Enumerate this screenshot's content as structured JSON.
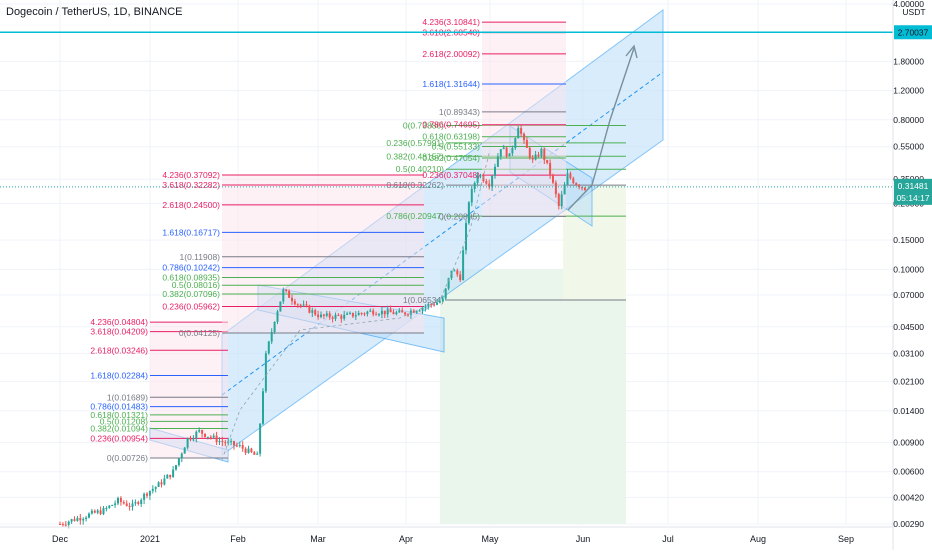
{
  "header": {
    "title": "Dogecoin / TetherUS, 1D, BINANCE"
  },
  "price_axis": {
    "unit": "USDT",
    "ticks": [
      "4.00000",
      "1.80000",
      "1.20000",
      "0.80000",
      "0.55000",
      "0.35000",
      "0.25000",
      "0.15000",
      "0.10000",
      "0.07000",
      "0.04500",
      "0.03100",
      "0.02100",
      "0.01400",
      "0.00900",
      "0.00600",
      "0.00420",
      "0.00290"
    ],
    "top_badge": "2.70037",
    "current_badge": "0.31481",
    "countdown": "05:14:17"
  },
  "colors": {
    "candle_up": "#26a69a",
    "candle_down": "#ef5350",
    "channel_fill": "#bbdefb",
    "channel_line": "#2196f3",
    "horizontal_line": "#00bcd4",
    "fib_red": "#e91e63",
    "fib_green": "#4caf50",
    "fib_blue": "#2962ff",
    "fib_gray": "#787b86",
    "target_zone": "#e8f5e9"
  },
  "chart_data": {
    "type": "candlestick",
    "symbol": "Dogecoin / TetherUS",
    "timeframe": "1D",
    "exchange": "BINANCE",
    "y_scale": "log",
    "ylim": [
      0.0029,
      4.0
    ],
    "x_tick_labels": [
      "Dec",
      "2021",
      "Feb",
      "Mar",
      "Apr",
      "May",
      "Jun",
      "Jul",
      "Aug",
      "Sep"
    ],
    "price_levels": {
      "horizontal_line": 2.70037,
      "current_price": 0.31481
    },
    "fib_sets": [
      {
        "anchor_low": 0.00726,
        "anchor_high": 0.01689,
        "labels": [
          {
            "text": "4.236(0.04804)",
            "value": 0.04804,
            "color": "red"
          },
          {
            "text": "3.618(0.04209)",
            "value": 0.04209,
            "color": "red"
          },
          {
            "text": "2.618(0.03246)",
            "value": 0.03246,
            "color": "red"
          },
          {
            "text": "1.618(0.02284)",
            "value": 0.02284,
            "color": "blue"
          },
          {
            "text": "1(0.01689)",
            "value": 0.01689,
            "color": "gray"
          },
          {
            "text": "0.786(0.01483)",
            "value": 0.01483,
            "color": "blue"
          },
          {
            "text": "0.618(0.01321)",
            "value": 0.01321,
            "color": "green"
          },
          {
            "text": "0.5(0.01208)",
            "value": 0.01208,
            "color": "green"
          },
          {
            "text": "0.382(0.01094)",
            "value": 0.01094,
            "color": "green"
          },
          {
            "text": "0.236(0.00954)",
            "value": 0.00954,
            "color": "red"
          },
          {
            "text": "0(0.00726)",
            "value": 0.00726,
            "color": "gray"
          }
        ]
      },
      {
        "anchor_low": 0.04125,
        "anchor_high": 0.11908,
        "labels": [
          {
            "text": "4.236(0.37092)",
            "value": 0.37092,
            "color": "red"
          },
          {
            "text": "3.618(0.32282)",
            "value": 0.32282,
            "color": "red"
          },
          {
            "text": "2.618(0.24500)",
            "value": 0.245,
            "color": "red"
          },
          {
            "text": "1.618(0.16717)",
            "value": 0.16717,
            "color": "blue"
          },
          {
            "text": "1(0.11908)",
            "value": 0.11908,
            "color": "gray"
          },
          {
            "text": "0.786(0.10242)",
            "value": 0.10242,
            "color": "blue"
          },
          {
            "text": "0.618(0.08935)",
            "value": 0.08935,
            "color": "green"
          },
          {
            "text": "0.5(0.08016)",
            "value": 0.08016,
            "color": "green"
          },
          {
            "text": "0.382(0.07096)",
            "value": 0.07096,
            "color": "green"
          },
          {
            "text": "0.236(0.05962)",
            "value": 0.05962,
            "color": "red"
          },
          {
            "text": "0(0.04125)",
            "value": 0.04125,
            "color": "gray"
          }
        ]
      },
      {
        "anchor_low": 0.06534,
        "anchor_high": 0.73886,
        "labels": [
          {
            "text": "0(0.73886)",
            "value": 0.73886,
            "color": "green"
          },
          {
            "text": "0.236(0.57991)",
            "value": 0.57991,
            "color": "green"
          },
          {
            "text": "0.382(0.48157)",
            "value": 0.48157,
            "color": "green"
          },
          {
            "text": "0.5(0.40210)",
            "value": 0.4021,
            "color": "green"
          },
          {
            "text": "0.618(0.32262)",
            "value": 0.32262,
            "color": "gray"
          },
          {
            "text": "0.786(0.20947)",
            "value": 0.20947,
            "color": "green"
          },
          {
            "text": "1(0.06534)",
            "value": 0.06534,
            "color": "gray"
          }
        ]
      },
      {
        "anchor_low": 0.20895,
        "anchor_high": 0.74695,
        "labels": [
          {
            "text": "4.236(3.10841)",
            "value": 3.10841,
            "color": "red"
          },
          {
            "text": "3.618(2.68540)",
            "value": 2.6854,
            "color": "red"
          },
          {
            "text": "2.618(2.00092)",
            "value": 2.00092,
            "color": "red"
          },
          {
            "text": "1.618(1.31644)",
            "value": 1.31644,
            "color": "blue"
          },
          {
            "text": "1(0.89343)",
            "value": 0.89343,
            "color": "gray"
          },
          {
            "text": "0.786(0.74695)",
            "value": 0.74695,
            "color": "red"
          },
          {
            "text": "0.618(0.63198)",
            "value": 0.63198,
            "color": "green"
          },
          {
            "text": "0.5(0.55133)",
            "value": 0.55133,
            "color": "green"
          },
          {
            "text": "0.382(0.47054)",
            "value": 0.47054,
            "color": "green"
          },
          {
            "text": "0.236(0.37048)",
            "value": 0.37048,
            "color": "red"
          },
          {
            "text": "0(0.20895)",
            "value": 0.20895,
            "color": "gray"
          }
        ]
      }
    ]
  }
}
